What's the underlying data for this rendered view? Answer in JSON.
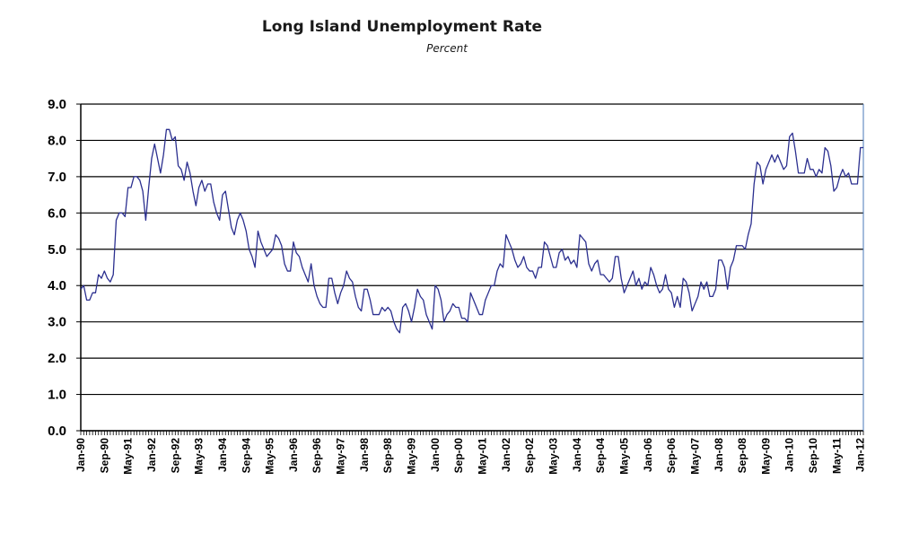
{
  "chart_data": {
    "type": "line",
    "title": "Long Island Unemployment Rate",
    "subtitle": "Percent",
    "xlabel": "",
    "ylabel": "",
    "ylim": [
      0,
      9
    ],
    "y_ticks": [
      "0.0",
      "1.0",
      "2.0",
      "3.0",
      "4.0",
      "5.0",
      "6.0",
      "7.0",
      "8.0",
      "9.0"
    ],
    "x_tick_labels": [
      "Jan-90",
      "Sep-90",
      "May-91",
      "Jan-92",
      "Sep-92",
      "May-93",
      "Jan-94",
      "Sep-94",
      "May-95",
      "Jan-96",
      "Sep-96",
      "May-97",
      "Jan-98",
      "Sep-98",
      "May-99",
      "Jan-00",
      "Sep-00",
      "May-01",
      "Jan-02",
      "Sep-02",
      "May-03",
      "Jan-04",
      "Sep-04",
      "May-05",
      "Jan-06",
      "Sep-06",
      "May-07",
      "Jan-08",
      "Sep-08",
      "May-09",
      "Jan-10",
      "Sep-10",
      "May-11",
      "Jan-12"
    ],
    "grid": true,
    "line_color": "#2b2f8f",
    "x_start": "Jan-90",
    "x_end": "Jan-12",
    "frequency": "monthly",
    "series": [
      {
        "values": [
          3.9,
          4.0,
          3.6,
          3.6,
          3.8,
          3.8,
          4.3,
          4.2,
          4.4,
          4.2,
          4.1,
          4.3,
          5.8,
          6.0,
          6.0,
          5.9,
          6.7,
          6.7,
          7.0,
          7.0,
          6.9,
          6.6,
          5.8,
          6.7,
          7.5,
          7.9,
          7.5,
          7.1,
          7.6,
          8.3,
          8.3,
          8.0,
          8.1,
          7.3,
          7.2,
          6.9,
          7.4,
          7.1,
          6.6,
          6.2,
          6.7,
          6.9,
          6.6,
          6.8,
          6.8,
          6.3,
          6.0,
          5.8,
          6.5,
          6.6,
          6.1,
          5.6,
          5.4,
          5.8,
          6.0,
          5.8,
          5.5,
          5.0,
          4.8,
          4.5,
          5.5,
          5.2,
          5.0,
          4.8,
          4.9,
          5.0,
          5.4,
          5.3,
          5.1,
          4.6,
          4.4,
          4.4,
          5.2,
          4.9,
          4.8,
          4.5,
          4.3,
          4.1,
          4.6,
          4.0,
          3.7,
          3.5,
          3.4,
          3.4,
          4.2,
          4.2,
          3.8,
          3.5,
          3.8,
          4.0,
          4.4,
          4.2,
          4.1,
          3.7,
          3.4,
          3.3,
          3.9,
          3.9,
          3.6,
          3.2,
          3.2,
          3.2,
          3.4,
          3.3,
          3.4,
          3.3,
          3.0,
          2.8,
          2.7,
          3.4,
          3.5,
          3.3,
          3.0,
          3.4,
          3.9,
          3.7,
          3.6,
          3.2,
          3.0,
          2.8,
          4.0,
          3.9,
          3.6,
          3.0,
          3.2,
          3.3,
          3.5,
          3.4,
          3.4,
          3.1,
          3.1,
          3.0,
          3.8,
          3.6,
          3.4,
          3.2,
          3.2,
          3.6,
          3.8,
          4.0,
          4.0,
          4.4,
          4.6,
          4.5,
          5.4,
          5.2,
          5.0,
          4.7,
          4.5,
          4.6,
          4.8,
          4.5,
          4.4,
          4.4,
          4.2,
          4.5,
          4.5,
          5.2,
          5.1,
          4.8,
          4.5,
          4.5,
          4.9,
          5.0,
          4.7,
          4.8,
          4.6,
          4.7,
          4.5,
          5.4,
          5.3,
          5.2,
          4.6,
          4.4,
          4.6,
          4.7,
          4.3,
          4.3,
          4.2,
          4.1,
          4.2,
          4.8,
          4.8,
          4.2,
          3.8,
          4.0,
          4.2,
          4.4,
          4.0,
          4.2,
          3.9,
          4.1,
          4.0,
          4.5,
          4.3,
          4.0,
          3.8,
          3.9,
          4.3,
          3.9,
          3.8,
          3.4,
          3.7,
          3.4,
          4.2,
          4.1,
          3.8,
          3.3,
          3.5,
          3.7,
          4.1,
          3.9,
          4.1,
          3.7,
          3.7,
          3.9,
          4.7,
          4.7,
          4.5,
          3.9,
          4.5,
          4.7,
          5.1,
          5.1,
          5.1,
          5.0,
          5.4,
          5.7,
          6.8,
          7.4,
          7.3,
          6.8,
          7.2,
          7.4,
          7.6,
          7.4,
          7.6,
          7.4,
          7.2,
          7.3,
          8.1,
          8.2,
          7.7,
          7.1,
          7.1,
          7.1,
          7.5,
          7.2,
          7.2,
          7.0,
          7.2,
          7.1,
          7.8,
          7.7,
          7.3,
          6.6,
          6.7,
          7.0,
          7.2,
          7.0,
          7.1,
          6.8,
          6.8,
          6.8,
          7.8,
          7.8
        ]
      }
    ]
  }
}
